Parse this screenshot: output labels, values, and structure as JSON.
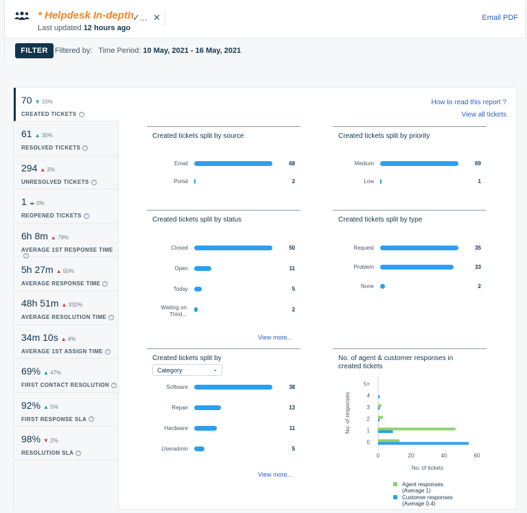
{
  "header": {
    "title": "* Helpdesk In-depth",
    "updated_prefix": "Last updated",
    "updated_value": "12 hours ago",
    "email_pdf": "Email PDF",
    "check_glyph": "✓...",
    "close_glyph": "✕"
  },
  "filter": {
    "button": "FILTER",
    "label": "Filtered by:",
    "period_label": "Time Period:",
    "period_value": "10 May, 2021 - 16 May, 2021"
  },
  "links": {
    "how": "How to read this report ?",
    "all": "View all tickets"
  },
  "metrics": [
    {
      "main": "70",
      "delta": "10%",
      "trend": "down-green",
      "label": "CREATED TICKETS"
    },
    {
      "main": "61",
      "delta": "30%",
      "trend": "up-green",
      "label": "RESOLVED TICKETS"
    },
    {
      "main": "294",
      "delta": "3%",
      "trend": "up-red",
      "label": "UNRESOLVED TICKETS"
    },
    {
      "main": "1",
      "delta": "0%",
      "trend": "flat",
      "label": "REOPENED TICKETS"
    },
    {
      "main": "6h 8m",
      "delta": "79%",
      "trend": "up-red",
      "label": "AVERAGE 1ST RESPONSE TIME"
    },
    {
      "main": "5h 27m",
      "delta": "50%",
      "trend": "up-red",
      "label": "AVERAGE RESPONSE TIME"
    },
    {
      "main": "48h 51m",
      "delta": "332%",
      "trend": "up-red",
      "label": "AVERAGE RESOLUTION TIME"
    },
    {
      "main": "34m 10s",
      "delta": "4%",
      "trend": "up-red",
      "label": "AVERAGE 1ST ASSIGN TIME"
    },
    {
      "main": "69%",
      "delta": "47%",
      "trend": "up-green",
      "label": "FIRST CONTACT RESOLUTION"
    },
    {
      "main": "92%",
      "delta": "5%",
      "trend": "up-green",
      "label": "FIRST RESPONSE SLA"
    },
    {
      "main": "98%",
      "delta": "2%",
      "trend": "down-red",
      "label": "RESOLUTION SLA"
    }
  ],
  "cards": {
    "source": {
      "title": "Created tickets split by source",
      "max": 68,
      "rows": [
        {
          "label": "Email",
          "value": 68
        },
        {
          "label": "Portal",
          "value": 2
        }
      ]
    },
    "priority": {
      "title": "Created tickets split by priority",
      "max": 69,
      "rows": [
        {
          "label": "Medium",
          "value": 69
        },
        {
          "label": "Low",
          "value": 1
        }
      ]
    },
    "status": {
      "title": "Created tickets split by status",
      "max": 50,
      "rows": [
        {
          "label": "Closed",
          "value": 50
        },
        {
          "label": "Open",
          "value": 11
        },
        {
          "label": "Today",
          "value": 5
        },
        {
          "label": "Waiting on Third...",
          "value": 2
        }
      ],
      "view_more": "View more..."
    },
    "type": {
      "title": "Created tickets split by type",
      "max": 35,
      "rows": [
        {
          "label": "Request",
          "value": 35
        },
        {
          "label": "Problem",
          "value": 33
        },
        {
          "label": "None",
          "value": 2
        }
      ]
    },
    "category": {
      "title": "Created tickets split by",
      "select": "Category",
      "max": 38,
      "rows": [
        {
          "label": "Software",
          "value": 38
        },
        {
          "label": "Repair",
          "value": 13
        },
        {
          "label": "Hardware",
          "value": 11
        },
        {
          "label": "Useradmin",
          "value": 5
        }
      ],
      "view_more": "View more..."
    },
    "responses": {
      "title": "No. of agent & customer responses in created tickets"
    }
  },
  "chart_data": {
    "type": "bar",
    "orientation": "horizontal",
    "title": "No. of agent & customer responses in created tickets",
    "categories": [
      "5+",
      "4",
      "3",
      "2",
      "1",
      "0"
    ],
    "series": [
      {
        "name": "Agent responses",
        "values": [
          0,
          0,
          2,
          3,
          47,
          13
        ],
        "color": "#8ed16f"
      },
      {
        "name": "Customer responses",
        "values": [
          0,
          1,
          1,
          1,
          9,
          55
        ],
        "color": "#2c9ff0"
      }
    ],
    "legend_notes": [
      "(Average 1)",
      "(Average 0.4)"
    ],
    "xlabel": "No. of tickets",
    "ylabel": "No. of responses",
    "xlim": [
      0,
      60
    ],
    "xticks": [
      "0",
      "20",
      "40",
      "60"
    ],
    "legend_position": "bottom"
  }
}
